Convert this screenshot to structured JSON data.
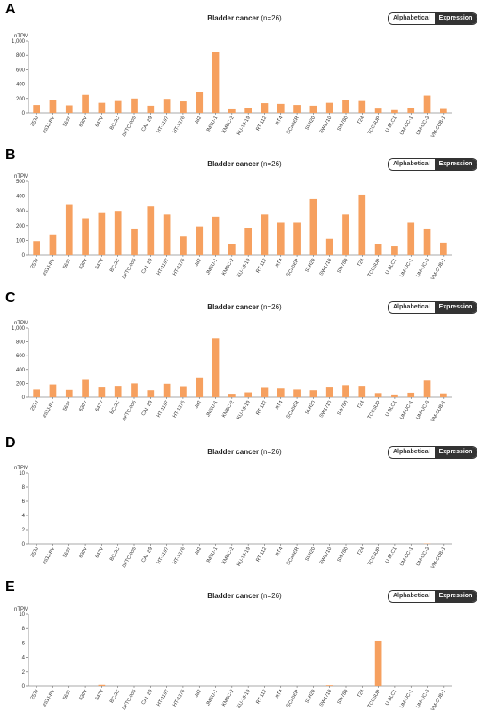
{
  "common": {
    "title_main": "Bladder cancer",
    "title_sub": "(n=26)",
    "toggle_alphabetical": "Alphabetical",
    "toggle_expression": "Expression",
    "y_unit": "nTPM",
    "bar_color": "#f6a05f"
  },
  "panels": [
    {
      "letter": "A",
      "chart_data": {
        "type": "bar",
        "title": "Bladder cancer (n=26)",
        "ylabel": "nTPM",
        "ylim": [
          0,
          1000
        ],
        "yticks": [
          0,
          200,
          400,
          600,
          800,
          1000
        ],
        "ytick_labels": [
          "0",
          "200",
          "400",
          "600",
          "800",
          "1,000"
        ],
        "categories": [
          "253J",
          "253J-BV",
          "5637",
          "639V",
          "647V",
          "BC-3C",
          "BFTC-905",
          "CAL-29",
          "HT-1197",
          "HT-1376",
          "J82",
          "JMSU-1",
          "KMBC-2",
          "KU-19-19",
          "RT-112",
          "RT4",
          "SCaBER",
          "SLR20",
          "SW1710",
          "SW780",
          "T24",
          "TCCSUP",
          "U-BLC1",
          "UM-UC-1",
          "UM-UC-3",
          "VM-CUB-1"
        ],
        "values": [
          110,
          185,
          105,
          250,
          140,
          165,
          200,
          100,
          195,
          160,
          285,
          850,
          50,
          70,
          135,
          125,
          110,
          100,
          140,
          175,
          165,
          60,
          40,
          65,
          240,
          55
        ]
      }
    },
    {
      "letter": "B",
      "chart_data": {
        "type": "bar",
        "title": "Bladder cancer (n=26)",
        "ylabel": "nTPM",
        "ylim": [
          0,
          500
        ],
        "yticks": [
          0,
          100,
          200,
          300,
          400,
          500
        ],
        "ytick_labels": [
          "0",
          "100",
          "200",
          "300",
          "400",
          "500"
        ],
        "categories": [
          "253J",
          "253J-BV",
          "5637",
          "639V",
          "647V",
          "BC-3C",
          "BFTC-905",
          "CAL-29",
          "HT-1197",
          "HT-1376",
          "J82",
          "JMSU-1",
          "KMBC-2",
          "KU-19-19",
          "RT-112",
          "RT4",
          "SCaBER",
          "SLR20",
          "SW1710",
          "SW780",
          "T24",
          "TCCSUP",
          "U-BLC1",
          "UM-UC-1",
          "UM-UC-3",
          "VM-CUB-1"
        ],
        "values": [
          95,
          140,
          340,
          250,
          285,
          300,
          175,
          330,
          275,
          125,
          195,
          260,
          75,
          185,
          275,
          220,
          220,
          380,
          110,
          275,
          410,
          75,
          60,
          220,
          175,
          85
        ]
      }
    },
    {
      "letter": "C",
      "chart_data": {
        "type": "bar",
        "title": "Bladder cancer (n=26)",
        "ylabel": "nTPM",
        "ylim": [
          0,
          1000
        ],
        "yticks": [
          0,
          200,
          400,
          600,
          800,
          1000
        ],
        "ytick_labels": [
          "0",
          "200",
          "400",
          "600",
          "800",
          "1,000"
        ],
        "categories": [
          "253J",
          "253J-BV",
          "5637",
          "639V",
          "647V",
          "BC-3C",
          "BFTC-905",
          "CAL-29",
          "HT-1197",
          "HT-1376",
          "J82",
          "JMSU-1",
          "KMBC-2",
          "KU-19-19",
          "RT-112",
          "RT4",
          "SCaBER",
          "SLR20",
          "SW1710",
          "SW780",
          "T24",
          "TCCSUP",
          "U-BLC1",
          "UM-UC-1",
          "UM-UC-3",
          "VM-CUB-1"
        ],
        "values": [
          110,
          185,
          105,
          250,
          140,
          165,
          200,
          100,
          195,
          160,
          285,
          855,
          50,
          70,
          135,
          125,
          110,
          100,
          140,
          175,
          165,
          60,
          40,
          65,
          240,
          55
        ]
      }
    },
    {
      "letter": "D",
      "chart_data": {
        "type": "bar",
        "title": "Bladder cancer (n=26)",
        "ylabel": "nTPM",
        "ylim": [
          0,
          10
        ],
        "yticks": [
          0,
          2,
          4,
          6,
          8,
          10
        ],
        "ytick_labels": [
          "0",
          "2",
          "4",
          "6",
          "8",
          "10"
        ],
        "categories": [
          "253J",
          "253J-BV",
          "5637",
          "639V",
          "647V",
          "BC-3C",
          "BFTC-905",
          "CAL-29",
          "HT-1197",
          "HT-1376",
          "J82",
          "JMSU-1",
          "KMBC-2",
          "KU-19-19",
          "RT-112",
          "RT4",
          "SCaBER",
          "SLR20",
          "SW1710",
          "SW780",
          "T24",
          "TCCSUP",
          "U-BLC1",
          "UM-UC-1",
          "UM-UC-3",
          "VM-CUB-1"
        ],
        "values": [
          0,
          0,
          0,
          0,
          0,
          0,
          0,
          0,
          0,
          0,
          0,
          0,
          0,
          0,
          0,
          0,
          0,
          0,
          0,
          0,
          0,
          0,
          0,
          0,
          0.05,
          0
        ]
      }
    },
    {
      "letter": "E",
      "chart_data": {
        "type": "bar",
        "title": "Bladder cancer (n=26)",
        "ylabel": "nTPM",
        "ylim": [
          0,
          10
        ],
        "yticks": [
          0,
          2,
          4,
          6,
          8,
          10
        ],
        "ytick_labels": [
          "0",
          "2",
          "4",
          "6",
          "8",
          "10"
        ],
        "categories": [
          "253J",
          "253J-BV",
          "5637",
          "639V",
          "647V",
          "BC-3C",
          "BFTC-905",
          "CAL-29",
          "HT-1197",
          "HT-1376",
          "J82",
          "JMSU-1",
          "KMBC-2",
          "KU-19-19",
          "RT-112",
          "RT4",
          "SCaBER",
          "SLR20",
          "SW1710",
          "SW780",
          "T24",
          "TCCSUP",
          "U-BLC1",
          "UM-UC-1",
          "UM-UC-3",
          "VM-CUB-1"
        ],
        "values": [
          0,
          0,
          0,
          0,
          0.15,
          0,
          0,
          0,
          0,
          0,
          0,
          0,
          0,
          0,
          0,
          0,
          0,
          0,
          0.1,
          0,
          0,
          6.3,
          0,
          0,
          0,
          0
        ]
      }
    }
  ]
}
